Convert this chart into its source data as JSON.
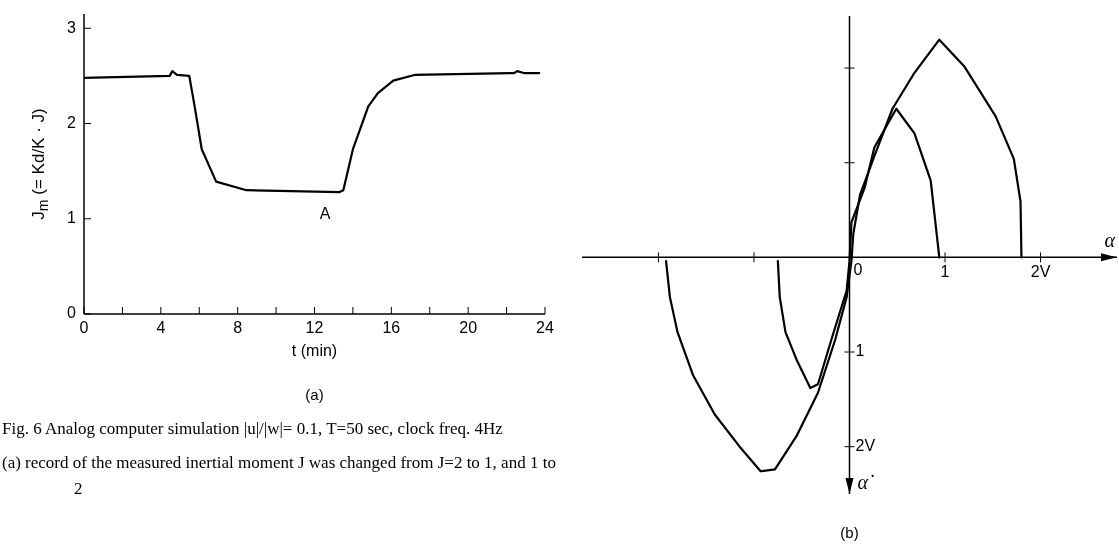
{
  "chart_data": [
    {
      "type": "line",
      "title": "(a)",
      "xlabel": "t (min)",
      "ylabel": "J$_{m}$ (= Kd/K · J)",
      "xlim": [
        0,
        24
      ],
      "ylim": [
        0,
        3.15
      ],
      "xticks": [
        0,
        {
          "value": 2,
          "label": null
        },
        4,
        {
          "value": 6,
          "label": null
        },
        8,
        {
          "value": 10,
          "label": null
        },
        12,
        {
          "value": 14,
          "label": null
        },
        16,
        {
          "value": 18,
          "label": null
        },
        20,
        {
          "value": 22,
          "label": null
        },
        24
      ],
      "yticks": [
        0,
        1,
        2,
        3
      ],
      "marker": "none",
      "line_style": "solid",
      "series": [
        {
          "color": "#000000",
          "x": [
            0,
            4.46,
            4.6,
            4.84,
            5.48,
            5.76,
            6.13,
            6.88,
            8.46,
            13.3,
            13.5,
            14.0,
            14.8,
            15.3,
            16.1,
            17.2,
            22.4,
            22.55,
            22.9,
            23.7
          ],
          "values": [
            2.48,
            2.5,
            2.55,
            2.51,
            2.5,
            2.18,
            1.73,
            1.39,
            1.3,
            1.28,
            1.3,
            1.73,
            2.18,
            2.32,
            2.45,
            2.51,
            2.53,
            2.55,
            2.53,
            2.53
          ]
        }
      ],
      "annotations": [
        "A",
        "Fig. 6  Analog computer simulation |u|/|w|= 0.1, T=50 sec, clock freq. 4Hz",
        "(a)  record of the measured inertial moment J was changed from J=2 to 1, and 1 to 2"
      ]
    },
    {
      "type": "line",
      "title": "(b)",
      "xlabel": "α",
      "ylabel": "α̇",
      "xlim": [
        -2.8,
        2.8
      ],
      "ylim": [
        2.5,
        -2.55
      ],
      "xticks": [
        {
          "value": -2,
          "label": null
        },
        {
          "value": -1,
          "label": null
        },
        0,
        1,
        {
          "value": 2,
          "label": "2V"
        }
      ],
      "yticks": [
        {
          "value": -2,
          "label": null
        },
        {
          "value": -1,
          "label": null
        },
        1,
        {
          "value": 2,
          "label": "2V"
        }
      ],
      "marker": "none",
      "line_style": "solid",
      "series": [
        {
          "color": "#000000",
          "x": [
            -1.92,
            -1.88,
            -1.8,
            -1.64,
            -1.41,
            -1.15,
            -0.93,
            -0.78,
            -0.55,
            -0.33,
            -0.15,
            -0.03,
            0.02,
            0.04,
            0.11,
            0.26,
            0.45,
            0.68,
            0.94,
            1.2,
            1.53,
            1.72,
            1.79,
            1.8
          ],
          "values": [
            0.04,
            0.42,
            0.79,
            1.24,
            1.66,
            2.0,
            2.26,
            2.24,
            1.88,
            1.43,
            0.87,
            0.42,
            0.04,
            -0.25,
            -0.66,
            -1.07,
            -1.57,
            -1.95,
            -2.3,
            -2.02,
            -1.49,
            -1.04,
            -0.59,
            0
          ]
        },
        {
          "color": "#000000",
          "x": [
            -0.75,
            -0.73,
            -0.67,
            -0.55,
            -0.41,
            -0.33,
            -0.19,
            -0.03,
            0,
            0.02,
            0.16,
            0.26,
            0.49,
            0.68,
            0.85,
            0.94
          ],
          "values": [
            0.04,
            0.42,
            0.79,
            1.09,
            1.38,
            1.34,
            0.87,
            0.35,
            0.04,
            -0.37,
            -0.74,
            -1.16,
            -1.57,
            -1.31,
            -0.81,
            0
          ]
        }
      ]
    }
  ]
}
